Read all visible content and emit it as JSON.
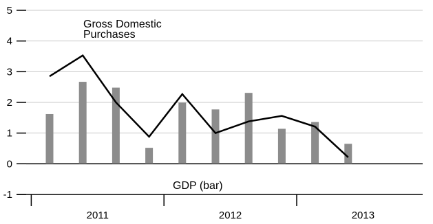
{
  "chart_data": {
    "type": "bar",
    "title": "",
    "xlabel": "",
    "ylabel": "",
    "ylim": [
      -1,
      5
    ],
    "yticks": [
      -1,
      0,
      1,
      2,
      3,
      4,
      5
    ],
    "grid": true,
    "year_labels": [
      "2011",
      "2012",
      "2013"
    ],
    "quarters_per_year": 4,
    "series": [
      {
        "type": "bar",
        "values": [
          1.62,
          2.67,
          2.48,
          0.52,
          1.99,
          1.77,
          2.31,
          1.14,
          1.36,
          0.65
        ],
        "color": "#8c8c8c"
      },
      {
        "type": "line",
        "values": [
          2.85,
          3.53,
          2.0,
          0.88,
          2.27,
          1.0,
          1.38,
          1.56,
          1.21,
          0.21
        ],
        "color": "#000000"
      }
    ],
    "annotations": [
      {
        "text": "Gross Domestic Purchases",
        "lines": [
          "Gross Domestic",
          "Purchases"
        ]
      },
      {
        "text": "GDP (bar)"
      }
    ]
  }
}
